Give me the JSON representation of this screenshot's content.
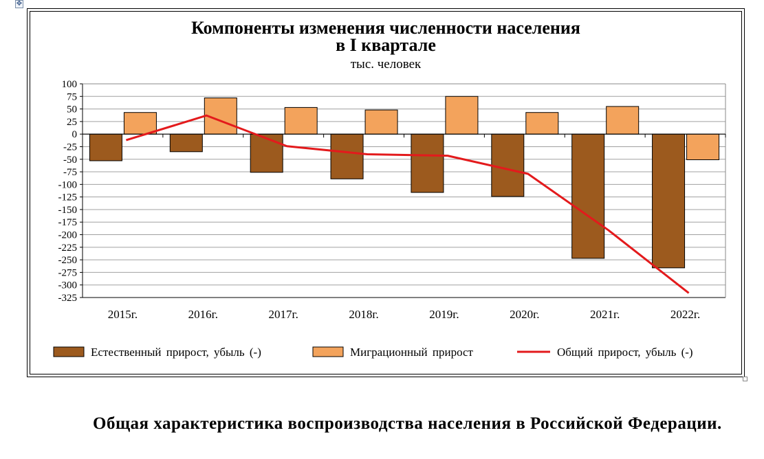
{
  "handle_glyph": "✥",
  "chart_data": {
    "type": "bar",
    "title": "Компоненты изменения численности населения",
    "title_line2": "в I квартале",
    "subtitle": "тыс. человек",
    "categories": [
      "2015г.",
      "2016г.",
      "2017г.",
      "2018г.",
      "2019г.",
      "2020г.",
      "2021г.",
      "2022г."
    ],
    "series": [
      {
        "name": "Естественный прирост, убыль (-)",
        "kind": "bar",
        "color": "#9c5a1e",
        "values": [
          -53,
          -35,
          -76,
          -89,
          -116,
          -124,
          -247,
          -266
        ]
      },
      {
        "name": "Миграционный прирост",
        "kind": "bar",
        "color": "#f3a35c",
        "values": [
          43,
          72,
          53,
          48,
          75,
          43,
          55,
          -51
        ]
      },
      {
        "name": "Общий прирост, убыль (-)",
        "kind": "line",
        "color": "#e31a1c",
        "values": [
          -12,
          37,
          -24,
          -40,
          -43,
          -79,
          -191,
          -316
        ]
      }
    ],
    "ylim": [
      -325,
      100
    ],
    "ytick_step": 25,
    "grid": true,
    "legend": "bottom"
  },
  "paragraph": {
    "text": "Общая характеристика воспроизводства населения в Российской Федерации."
  }
}
